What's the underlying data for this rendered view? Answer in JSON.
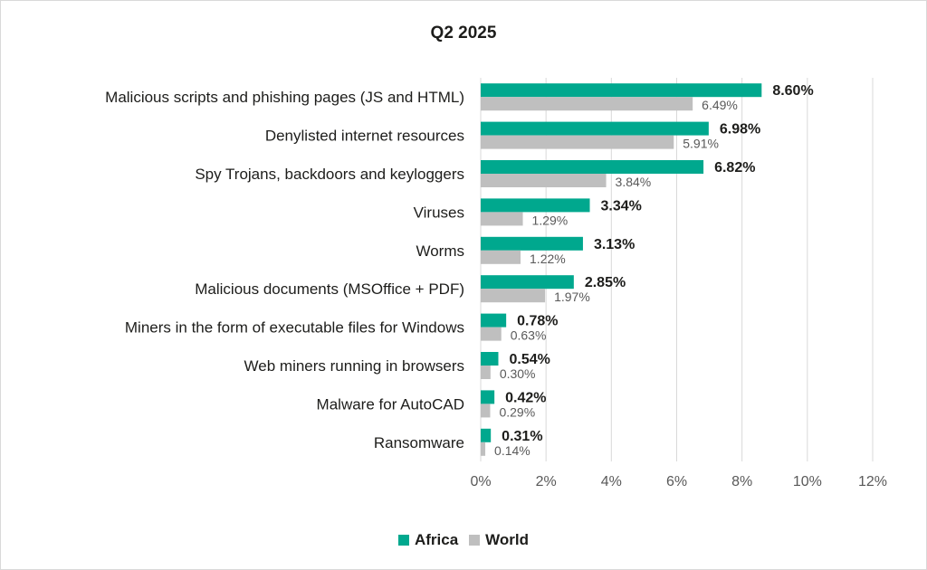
{
  "chart_data": {
    "type": "bar",
    "orientation": "horizontal",
    "title": "Q2 2025",
    "categories": [
      "Malicious scripts and phishing pages (JS and HTML)",
      "Denylisted internet resources",
      "Spy Trojans, backdoors and keyloggers",
      "Viruses",
      "Worms",
      "Malicious documents (MSOffice + PDF)",
      "Miners in the form of executable files for Windows",
      "Web miners running in browsers",
      "Malware for AutoCAD",
      "Ransomware"
    ],
    "series": [
      {
        "name": "Africa",
        "color": "#00a88e",
        "values": [
          8.6,
          6.98,
          6.82,
          3.34,
          3.13,
          2.85,
          0.78,
          0.54,
          0.42,
          0.31
        ],
        "labels": [
          "8.60%",
          "6.98%",
          "6.82%",
          "3.34%",
          "3.13%",
          "2.85%",
          "0.78%",
          "0.54%",
          "0.42%",
          "0.31%"
        ]
      },
      {
        "name": "World",
        "color": "#bfbfbf",
        "values": [
          6.49,
          5.91,
          3.84,
          1.29,
          1.22,
          1.97,
          0.63,
          0.3,
          0.29,
          0.14
        ],
        "labels": [
          "6.49%",
          "5.91%",
          "3.84%",
          "1.29%",
          "1.22%",
          "1.97%",
          "0.63%",
          "0.30%",
          "0.29%",
          "0.14%"
        ]
      }
    ],
    "xlim": [
      0,
      12
    ],
    "xticks": [
      0,
      2,
      4,
      6,
      8,
      10,
      12
    ],
    "xtick_labels": [
      "0%",
      "2%",
      "4%",
      "6%",
      "8%",
      "10%",
      "12%"
    ],
    "xlabel": "",
    "ylabel": "",
    "grid": "vertical",
    "legend_position": "bottom"
  },
  "legend": {
    "items": [
      {
        "label": "Africa",
        "color": "#00a88e"
      },
      {
        "label": "World",
        "color": "#bfbfbf"
      }
    ]
  }
}
